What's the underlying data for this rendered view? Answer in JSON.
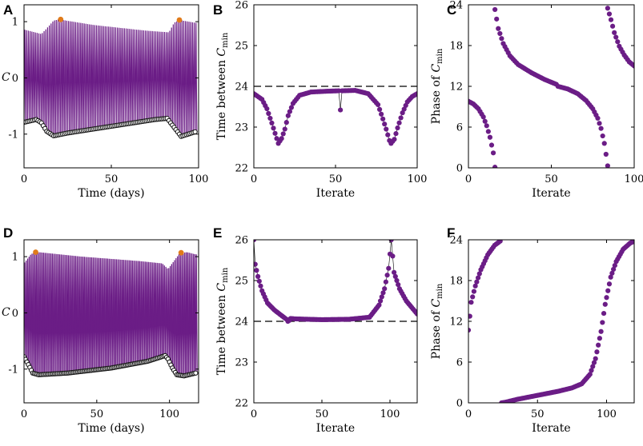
{
  "chart_data": [
    {
      "id": "A",
      "panel_letter": "A",
      "type": "line",
      "ylabel": "C",
      "xlabel": "Time (days)",
      "xlim": [
        0,
        100
      ],
      "ylim": [
        -1.6,
        1.3
      ],
      "xticks": [
        "0",
        "50",
        "100"
      ],
      "xtick_values": [
        0,
        50,
        100
      ],
      "yticks": [
        "-1",
        "0",
        "1"
      ],
      "ytick_values": [
        -1,
        0,
        1
      ],
      "series": [
        {
          "name": "C oscillation (purple fill)",
          "color": "#6b1d86"
        },
        {
          "name": "daily minima",
          "color": "#1a1a1a"
        },
        {
          "name": "maxima markers",
          "color": "#e07b1a"
        }
      ],
      "envelope_top": [
        [
          0,
          0.86
        ],
        [
          10,
          0.78
        ],
        [
          13,
          0.88
        ],
        [
          17,
          1.02
        ],
        [
          20,
          1.04
        ],
        [
          40,
          0.94
        ],
        [
          70,
          0.84
        ],
        [
          83,
          0.81
        ],
        [
          86,
          0.98
        ],
        [
          89,
          1.03
        ],
        [
          98,
          0.98
        ]
      ],
      "envelope_min": [
        [
          0,
          -0.79
        ],
        [
          7,
          -0.74
        ],
        [
          10,
          -0.8
        ],
        [
          13,
          -0.95
        ],
        [
          17,
          -1.03
        ],
        [
          25,
          -0.98
        ],
        [
          50,
          -0.86
        ],
        [
          75,
          -0.74
        ],
        [
          82,
          -0.72
        ],
        [
          86,
          -0.88
        ],
        [
          90,
          -1.04
        ],
        [
          98,
          -0.96
        ]
      ],
      "orange_points": [
        [
          21,
          1.04
        ],
        [
          89,
          1.03
        ]
      ]
    },
    {
      "id": "B",
      "panel_letter": "B",
      "type": "scatter",
      "ylabel": "Time between",
      "ylabel_sym": "C",
      "ylabel_sub": "min",
      "xlabel": "Iterate",
      "xlim": [
        0,
        100
      ],
      "ylim": [
        22,
        26
      ],
      "xticks": [
        "0",
        "50",
        "100"
      ],
      "xtick_values": [
        0,
        50,
        100
      ],
      "yticks": [
        "22",
        "23",
        "24",
        "25",
        "26"
      ],
      "ytick_values": [
        22,
        23,
        24,
        25,
        26
      ],
      "reference_line": 24,
      "curve": [
        [
          0,
          23.82
        ],
        [
          5,
          23.68
        ],
        [
          8,
          23.45
        ],
        [
          11,
          23.1
        ],
        [
          14,
          22.72
        ],
        [
          15,
          22.6
        ],
        [
          17,
          22.72
        ],
        [
          19,
          22.95
        ],
        [
          21,
          23.28
        ],
        [
          24,
          23.58
        ],
        [
          28,
          23.78
        ],
        [
          35,
          23.86
        ],
        [
          45,
          23.88
        ],
        [
          52,
          23.89
        ],
        [
          53,
          23.42
        ],
        [
          54,
          23.89
        ],
        [
          62,
          23.9
        ],
        [
          70,
          23.82
        ],
        [
          76,
          23.55
        ],
        [
          79,
          23.2
        ],
        [
          81,
          22.95
        ],
        [
          83,
          22.67
        ],
        [
          84,
          22.6
        ],
        [
          86,
          22.7
        ],
        [
          88,
          22.98
        ],
        [
          91,
          23.35
        ],
        [
          94,
          23.62
        ],
        [
          97,
          23.75
        ],
        [
          100,
          23.82
        ]
      ]
    },
    {
      "id": "C",
      "panel_letter": "C",
      "type": "scatter",
      "ylabel": "Phase of",
      "ylabel_sym": "C",
      "ylabel_sub": "min",
      "xlabel": "Iterate",
      "xlim": [
        0,
        100
      ],
      "ylim": [
        0,
        24
      ],
      "xticks": [
        "0",
        "50",
        "100"
      ],
      "xtick_values": [
        0,
        50,
        100
      ],
      "yticks": [
        "0",
        "6",
        "12",
        "18",
        "24"
      ],
      "ytick_values": [
        0,
        6,
        12,
        18,
        24
      ],
      "segments": [
        [
          [
            0,
            9.8
          ],
          [
            3,
            9.4
          ],
          [
            6,
            8.7
          ],
          [
            9,
            7.5
          ],
          [
            11,
            6.2
          ],
          [
            13,
            4.5
          ],
          [
            15,
            2.2
          ],
          [
            16,
            0.1
          ]
        ],
        [
          [
            16,
            23.3
          ],
          [
            18,
            20.5
          ],
          [
            21,
            18.3
          ],
          [
            25,
            16.5
          ],
          [
            30,
            15.2
          ],
          [
            38,
            14.0
          ],
          [
            46,
            13.0
          ],
          [
            53,
            12.3
          ],
          [
            54,
            12.0
          ],
          [
            60,
            11.6
          ],
          [
            66,
            10.9
          ],
          [
            71,
            9.9
          ],
          [
            75,
            8.7
          ],
          [
            78,
            7.3
          ],
          [
            80,
            5.8
          ],
          [
            82,
            3.6
          ],
          [
            83,
            2.0
          ],
          [
            84,
            0.3
          ]
        ],
        [
          [
            84,
            23.5
          ],
          [
            86,
            21.8
          ],
          [
            88,
            19.9
          ],
          [
            91,
            17.9
          ],
          [
            94,
            16.6
          ],
          [
            97,
            15.6
          ],
          [
            100,
            15.0
          ]
        ]
      ]
    },
    {
      "id": "D",
      "panel_letter": "D",
      "type": "line",
      "ylabel": "C",
      "xlabel": "Time (days)",
      "xlim": [
        0,
        120
      ],
      "ylim": [
        -1.6,
        1.3
      ],
      "xticks": [
        "0",
        "50",
        "100"
      ],
      "xtick_values": [
        0,
        50,
        100
      ],
      "yticks": [
        "-1",
        "0",
        "1"
      ],
      "ytick_values": [
        -1,
        0,
        1
      ],
      "series": [
        {
          "name": "C oscillation (purple fill)",
          "color": "#6b1d86"
        },
        {
          "name": "daily minima",
          "color": "#1a1a1a"
        },
        {
          "name": "maxima markers",
          "color": "#e07b1a"
        }
      ],
      "envelope_top": [
        [
          0,
          0.88
        ],
        [
          5,
          1.05
        ],
        [
          10,
          1.08
        ],
        [
          40,
          1.0
        ],
        [
          80,
          0.92
        ],
        [
          95,
          0.88
        ],
        [
          99,
          0.78
        ],
        [
          103,
          0.92
        ],
        [
          107,
          1.06
        ],
        [
          112,
          1.08
        ],
        [
          118,
          1.04
        ]
      ],
      "envelope_min": [
        [
          0,
          -0.78
        ],
        [
          3,
          -0.92
        ],
        [
          6,
          -1.07
        ],
        [
          10,
          -1.1
        ],
        [
          30,
          -1.07
        ],
        [
          60,
          -0.98
        ],
        [
          85,
          -0.86
        ],
        [
          97,
          -0.76
        ],
        [
          99,
          -0.82
        ],
        [
          102,
          -0.98
        ],
        [
          105,
          -1.1
        ],
        [
          110,
          -1.12
        ],
        [
          118,
          -1.07
        ]
      ],
      "orange_points": [
        [
          8,
          1.08
        ],
        [
          108,
          1.07
        ]
      ]
    },
    {
      "id": "E",
      "panel_letter": "E",
      "type": "scatter",
      "ylabel": "Time between",
      "ylabel_sym": "C",
      "ylabel_sub": "min",
      "xlabel": "Iterate",
      "xlim": [
        0,
        120
      ],
      "ylim": [
        22,
        26
      ],
      "xticks": [
        "0",
        "50",
        "100"
      ],
      "xtick_values": [
        0,
        50,
        100
      ],
      "yticks": [
        "22",
        "23",
        "24",
        "25",
        "26"
      ],
      "ytick_values": [
        22,
        23,
        24,
        25,
        26
      ],
      "reference_line": 24,
      "curve": [
        [
          0,
          26.0
        ],
        [
          1,
          25.4
        ],
        [
          3,
          25.1
        ],
        [
          6,
          24.75
        ],
        [
          10,
          24.45
        ],
        [
          15,
          24.28
        ],
        [
          20,
          24.15
        ],
        [
          24,
          24.05
        ],
        [
          25,
          24.0
        ],
        [
          26,
          24.02
        ],
        [
          27,
          24.07
        ],
        [
          30,
          24.06
        ],
        [
          50,
          24.04
        ],
        [
          70,
          24.05
        ],
        [
          85,
          24.1
        ],
        [
          92,
          24.4
        ],
        [
          96,
          24.8
        ],
        [
          99,
          25.3
        ],
        [
          101,
          26.0
        ],
        [
          103,
          25.2
        ],
        [
          107,
          24.8
        ],
        [
          112,
          24.5
        ],
        [
          120,
          24.18
        ]
      ]
    },
    {
      "id": "F",
      "panel_letter": "F",
      "type": "scatter",
      "ylabel": "Phase of",
      "ylabel_sym": "C",
      "ylabel_sub": "min",
      "xlabel": "Iterate",
      "xlim": [
        0,
        120
      ],
      "ylim": [
        0,
        24
      ],
      "xticks": [
        "0",
        "50",
        "100"
      ],
      "xtick_values": [
        0,
        50,
        100
      ],
      "yticks": [
        "0",
        "6",
        "12",
        "18",
        "24"
      ],
      "ytick_values": [
        0,
        6,
        12,
        18,
        24
      ],
      "segments": [
        [
          [
            0,
            10.7
          ],
          [
            2,
            14.8
          ],
          [
            5,
            17.2
          ],
          [
            9,
            19.6
          ],
          [
            14,
            21.8
          ],
          [
            19,
            23.2
          ],
          [
            23,
            23.8
          ]
        ],
        [
          [
            24,
            0.0
          ],
          [
            27,
            0.1
          ],
          [
            35,
            0.5
          ],
          [
            45,
            0.9
          ],
          [
            55,
            1.3
          ],
          [
            65,
            1.7
          ],
          [
            75,
            2.2
          ],
          [
            82,
            2.8
          ],
          [
            88,
            4.2
          ],
          [
            92,
            6.5
          ],
          [
            96,
            10.5
          ],
          [
            99,
            14.5
          ],
          [
            103,
            18.5
          ],
          [
            107,
            20.8
          ],
          [
            112,
            22.6
          ],
          [
            117,
            23.5
          ],
          [
            120,
            23.8
          ]
        ]
      ]
    }
  ],
  "colors": {
    "purple": "#6b1d86",
    "black": "#1a1a1a",
    "orange": "#e07b1a"
  }
}
